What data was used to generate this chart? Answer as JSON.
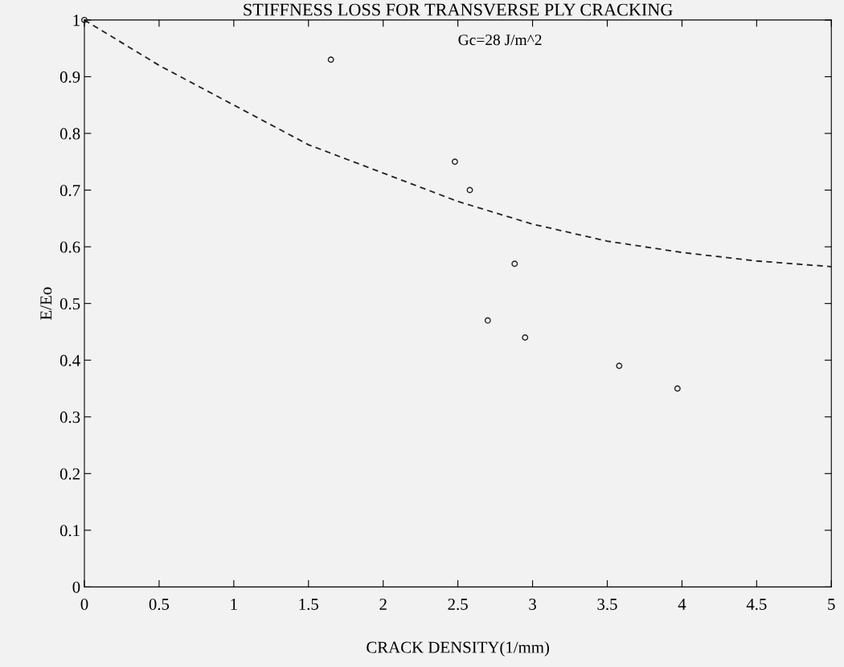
{
  "chart_data": {
    "type": "scatter",
    "title": "STIFFNESS LOSS FOR TRANSVERSE PLY CRACKING",
    "xlabel": "CRACK DENSITY(1/mm)",
    "ylabel": "E/Eo",
    "annotations": [
      "Gc=28 J/m^2"
    ],
    "series": [
      {
        "color": "#222222",
        "marker": "circle",
        "x": [
          0,
          1.65,
          2.48,
          2.58,
          2.7,
          2.88,
          2.95,
          3.58,
          3.97
        ],
        "values": [
          1.0,
          0.93,
          0.75,
          0.7,
          0.47,
          0.57,
          0.44,
          0.39,
          0.35
        ]
      },
      {
        "type": "line",
        "color": "#222222",
        "line_style": "dashed",
        "marker": "none",
        "x": [
          0,
          0.5,
          1,
          1.5,
          2,
          2.5,
          3,
          3.5,
          4,
          4.5,
          5
        ],
        "values": [
          1.0,
          0.92,
          0.85,
          0.78,
          0.73,
          0.68,
          0.64,
          0.61,
          0.59,
          0.575,
          0.565
        ]
      }
    ],
    "xlim": [
      0,
      5
    ],
    "xticks": [
      0,
      0.5,
      1,
      1.5,
      2,
      2.5,
      3,
      3.5,
      4,
      4.5,
      5
    ],
    "ylim": [
      0,
      1
    ],
    "yticks": [
      0,
      0.1,
      0.2,
      0.3,
      0.4,
      0.5,
      0.6,
      0.7,
      0.8,
      0.9,
      1
    ],
    "grid": false,
    "legend": false
  }
}
